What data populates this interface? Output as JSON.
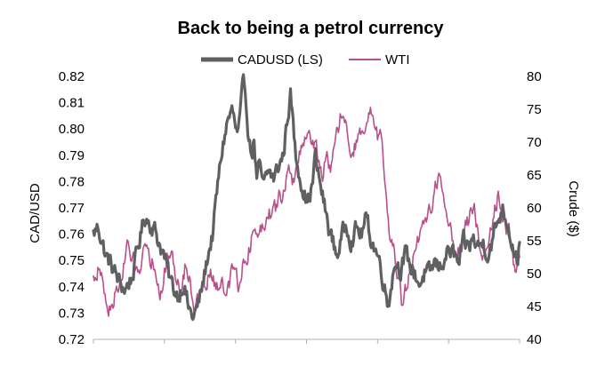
{
  "chart_data": {
    "type": "line",
    "title": "Back to being a petrol currency",
    "left_axis": {
      "label": "CAD/USD",
      "ylim": [
        0.72,
        0.82
      ],
      "ticks": [
        "0.72",
        "0.73",
        "0.74",
        "0.75",
        "0.76",
        "0.77",
        "0.78",
        "0.79",
        "0.80",
        "0.81",
        "0.82"
      ]
    },
    "right_axis": {
      "label": "Crude ($)",
      "ylim": [
        40,
        80
      ],
      "ticks": [
        "40",
        "45",
        "50",
        "55",
        "60",
        "65",
        "70",
        "75",
        "80"
      ]
    },
    "x_labels_visible": false,
    "grid": false,
    "legend_position": "top",
    "series": [
      {
        "name": "CADUSD (LS)",
        "axis": "left",
        "color": "#5f6062",
        "keypoints": [
          [
            0,
            0.76
          ],
          [
            2,
            0.763
          ],
          [
            5,
            0.752
          ],
          [
            8,
            0.747
          ],
          [
            11,
            0.741
          ],
          [
            13,
            0.739
          ],
          [
            16,
            0.744
          ],
          [
            19,
            0.758
          ],
          [
            21,
            0.767
          ],
          [
            23,
            0.765
          ],
          [
            25,
            0.762
          ],
          [
            27,
            0.757
          ],
          [
            29,
            0.752
          ],
          [
            31,
            0.744
          ],
          [
            33,
            0.739
          ],
          [
            35,
            0.737
          ],
          [
            37,
            0.742
          ],
          [
            39,
            0.732
          ],
          [
            41,
            0.728
          ],
          [
            43,
            0.733
          ],
          [
            45,
            0.741
          ],
          [
            47,
            0.752
          ],
          [
            49,
            0.76
          ],
          [
            51,
            0.778
          ],
          [
            53,
            0.793
          ],
          [
            55,
            0.803
          ],
          [
            57,
            0.807
          ],
          [
            59,
            0.797
          ],
          [
            60,
            0.801
          ],
          [
            61,
            0.812
          ],
          [
            62,
            0.817
          ],
          [
            63,
            0.808
          ],
          [
            64,
            0.795
          ],
          [
            65,
            0.791
          ],
          [
            66,
            0.796
          ],
          [
            67,
            0.781
          ],
          [
            68,
            0.785
          ],
          [
            70,
            0.778
          ],
          [
            72,
            0.784
          ],
          [
            74,
            0.781
          ],
          [
            76,
            0.786
          ],
          [
            78,
            0.79
          ],
          [
            79,
            0.799
          ],
          [
            80,
            0.807
          ],
          [
            81,
            0.813
          ],
          [
            82,
            0.802
          ],
          [
            83,
            0.79
          ],
          [
            84,
            0.786
          ],
          [
            86,
            0.778
          ],
          [
            88,
            0.772
          ],
          [
            90,
            0.779
          ],
          [
            91,
            0.79
          ],
          [
            92,
            0.784
          ],
          [
            94,
            0.775
          ],
          [
            96,
            0.765
          ],
          [
            98,
            0.758
          ],
          [
            100,
            0.752
          ],
          [
            102,
            0.759
          ],
          [
            104,
            0.764
          ],
          [
            106,
            0.758
          ],
          [
            108,
            0.762
          ],
          [
            110,
            0.76
          ],
          [
            112,
            0.766
          ],
          [
            114,
            0.758
          ],
          [
            116,
            0.754
          ],
          [
            118,
            0.748
          ],
          [
            120,
            0.738
          ],
          [
            121,
            0.733
          ],
          [
            122,
            0.74
          ],
          [
            124,
            0.75
          ],
          [
            126,
            0.747
          ],
          [
            128,
            0.752
          ],
          [
            130,
            0.748
          ],
          [
            132,
            0.745
          ],
          [
            134,
            0.741
          ],
          [
            136,
            0.745
          ],
          [
            138,
            0.744
          ],
          [
            140,
            0.749
          ],
          [
            142,
            0.747
          ],
          [
            144,
            0.751
          ],
          [
            146,
            0.754
          ],
          [
            148,
            0.752
          ],
          [
            150,
            0.748
          ],
          [
            152,
            0.756
          ],
          [
            154,
            0.755
          ],
          [
            156,
            0.758
          ],
          [
            158,
            0.755
          ],
          [
            160,
            0.757
          ],
          [
            162,
            0.753
          ],
          [
            164,
            0.758
          ],
          [
            166,
            0.765
          ],
          [
            168,
            0.77
          ],
          [
            170,
            0.765
          ],
          [
            172,
            0.757
          ],
          [
            174,
            0.75
          ],
          [
            175,
            0.756
          ]
        ]
      },
      {
        "name": "WTI",
        "axis": "right",
        "color": "#b8508c",
        "keypoints": [
          [
            0,
            49
          ],
          [
            2,
            51
          ],
          [
            4,
            48
          ],
          [
            6,
            44
          ],
          [
            8,
            46
          ],
          [
            10,
            48
          ],
          [
            12,
            50
          ],
          [
            14,
            54
          ],
          [
            16,
            52
          ],
          [
            18,
            50
          ],
          [
            20,
            53
          ],
          [
            22,
            55
          ],
          [
            24,
            52
          ],
          [
            26,
            50
          ],
          [
            28,
            47
          ],
          [
            30,
            52
          ],
          [
            32,
            54
          ],
          [
            34,
            49
          ],
          [
            36,
            47
          ],
          [
            38,
            52
          ],
          [
            40,
            48
          ],
          [
            42,
            45
          ],
          [
            44,
            46
          ],
          [
            46,
            48
          ],
          [
            48,
            50
          ],
          [
            50,
            48
          ],
          [
            52,
            49
          ],
          [
            54,
            47
          ],
          [
            56,
            49
          ],
          [
            58,
            51
          ],
          [
            60,
            48
          ],
          [
            62,
            52
          ],
          [
            64,
            54
          ],
          [
            66,
            57
          ],
          [
            68,
            56
          ],
          [
            70,
            58
          ],
          [
            72,
            60
          ],
          [
            74,
            59
          ],
          [
            76,
            61
          ],
          [
            78,
            63
          ],
          [
            80,
            65
          ],
          [
            82,
            64
          ],
          [
            84,
            67
          ],
          [
            86,
            70
          ],
          [
            88,
            72
          ],
          [
            90,
            70
          ],
          [
            92,
            68
          ],
          [
            94,
            65
          ],
          [
            96,
            68
          ],
          [
            98,
            66
          ],
          [
            100,
            72
          ],
          [
            102,
            74
          ],
          [
            104,
            72
          ],
          [
            106,
            68
          ],
          [
            108,
            70
          ],
          [
            110,
            71
          ],
          [
            112,
            72
          ],
          [
            114,
            74
          ],
          [
            116,
            71
          ],
          [
            118,
            70
          ],
          [
            120,
            63
          ],
          [
            121,
            58
          ],
          [
            122,
            55
          ],
          [
            124,
            52
          ],
          [
            126,
            49
          ],
          [
            127,
            44
          ],
          [
            128,
            47
          ],
          [
            130,
            50
          ],
          [
            132,
            53
          ],
          [
            134,
            55
          ],
          [
            136,
            57
          ],
          [
            138,
            60
          ],
          [
            140,
            62
          ],
          [
            142,
            66
          ],
          [
            144,
            60
          ],
          [
            146,
            58
          ],
          [
            148,
            55
          ],
          [
            150,
            53
          ],
          [
            152,
            56
          ],
          [
            154,
            58
          ],
          [
            156,
            61
          ],
          [
            158,
            56
          ],
          [
            160,
            53
          ],
          [
            162,
            55
          ],
          [
            164,
            58
          ],
          [
            166,
            62
          ],
          [
            168,
            60
          ],
          [
            170,
            57
          ],
          [
            172,
            54
          ],
          [
            173,
            50
          ],
          [
            175,
            52
          ]
        ]
      }
    ]
  }
}
